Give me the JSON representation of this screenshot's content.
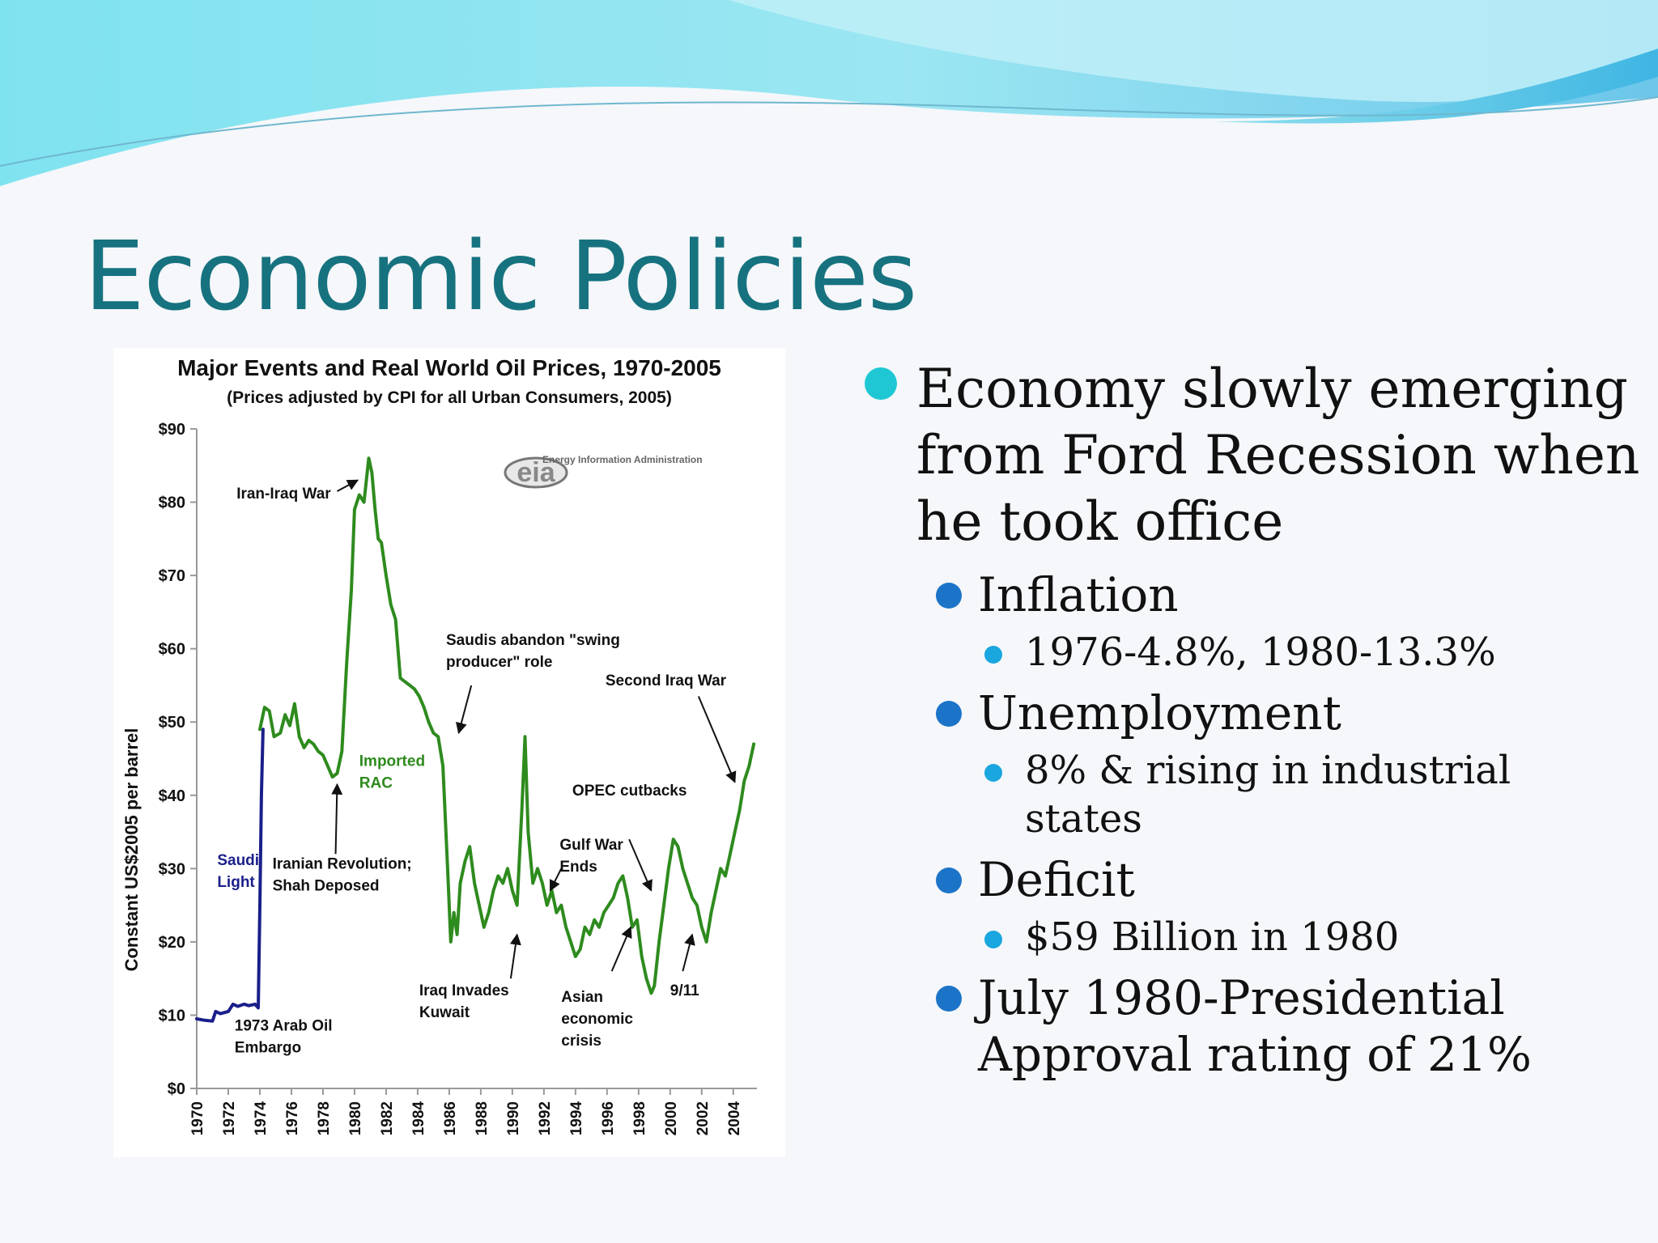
{
  "slide": {
    "title": "Economic Policies",
    "colors": {
      "title": "#17727f",
      "bullet1": "#1fc7d4",
      "bullet2": "#1c74c8",
      "bullet3": "#1aa6de"
    }
  },
  "bullets": {
    "main": {
      "lines": [
        "Economy slowly emerging",
        "from Ford Recession when",
        "he took office"
      ]
    },
    "inflation": {
      "label": "Inflation",
      "detail": "1976-4.8%, 1980-13.3%"
    },
    "unemployment": {
      "label": "Unemployment",
      "detail_lines": [
        "8% & rising in industrial",
        "states"
      ]
    },
    "deficit": {
      "label": "Deficit",
      "detail": "$59 Billion in 1980"
    },
    "approval": {
      "lines": [
        "July 1980-Presidential",
        "Approval rating of 21%"
      ]
    }
  },
  "chart_data": {
    "type": "line",
    "title": "Major Events and Real World Oil Prices, 1970-2005",
    "subtitle": "(Prices adjusted by CPI for all Urban Consumers, 2005)",
    "ylabel": "Constant US$2005 per barrel",
    "xlabel": "",
    "ylim": [
      0,
      90
    ],
    "xlim": [
      1970,
      2005.5
    ],
    "y_ticks": [
      0,
      10,
      20,
      30,
      40,
      50,
      60,
      70,
      80,
      90
    ],
    "y_tick_labels": [
      "$0",
      "$10",
      "$20",
      "$30",
      "$40",
      "$50",
      "$60",
      "$70",
      "$80",
      "$90"
    ],
    "x_ticks": [
      1970,
      1972,
      1974,
      1976,
      1978,
      1980,
      1982,
      1984,
      1986,
      1988,
      1990,
      1992,
      1994,
      1996,
      1998,
      2000,
      2002,
      2004
    ],
    "x_tick_labels": [
      "1970",
      "1972",
      "1974",
      "1976",
      "1978",
      "1980",
      "1982",
      "1984",
      "1986",
      "1988",
      "1990",
      "1992",
      "1994",
      "1996",
      "1998",
      "2000",
      "2002",
      "2004"
    ],
    "grid": false,
    "logo": {
      "agency": "Energy Information Administration",
      "mark": "eia"
    },
    "series": [
      {
        "name": "Saudi Light",
        "color": "#1a1f8a",
        "x": [
          1970.0,
          1970.5,
          1971.0,
          1971.2,
          1971.5,
          1972.0,
          1972.3,
          1972.6,
          1973.0,
          1973.3,
          1973.7,
          1973.9,
          1974.0,
          1974.1,
          1974.2
        ],
        "y": [
          9.5,
          9.3,
          9.2,
          10.5,
          10.2,
          10.5,
          11.5,
          11.2,
          11.5,
          11.3,
          11.5,
          11.0,
          25.0,
          40.0,
          49.0
        ]
      },
      {
        "name": "Imported RAC",
        "color": "#2e8b1e",
        "x": [
          1974.0,
          1974.3,
          1974.6,
          1974.9,
          1975.3,
          1975.6,
          1975.9,
          1976.2,
          1976.5,
          1976.8,
          1977.1,
          1977.4,
          1977.7,
          1978.0,
          1978.3,
          1978.6,
          1978.9,
          1979.2,
          1979.5,
          1979.8,
          1980.0,
          1980.3,
          1980.6,
          1980.9,
          1981.1,
          1981.3,
          1981.5,
          1981.7,
          1982.0,
          1982.3,
          1982.6,
          1982.9,
          1983.2,
          1983.5,
          1983.8,
          1984.1,
          1984.4,
          1984.7,
          1985.0,
          1985.3,
          1985.6,
          1985.9,
          1986.1,
          1986.3,
          1986.5,
          1986.7,
          1987.0,
          1987.3,
          1987.6,
          1987.9,
          1988.2,
          1988.5,
          1988.8,
          1989.1,
          1989.4,
          1989.7,
          1990.0,
          1990.3,
          1990.6,
          1990.8,
          1991.0,
          1991.3,
          1991.6,
          1991.9,
          1992.2,
          1992.5,
          1992.8,
          1993.1,
          1993.4,
          1993.7,
          1994.0,
          1994.3,
          1994.6,
          1994.9,
          1995.2,
          1995.5,
          1995.8,
          1996.1,
          1996.4,
          1996.7,
          1997.0,
          1997.3,
          1997.6,
          1997.9,
          1998.2,
          1998.5,
          1998.8,
          1999.0,
          1999.3,
          1999.6,
          1999.9,
          2000.2,
          2000.5,
          2000.8,
          2001.1,
          2001.4,
          2001.7,
          2002.0,
          2002.3,
          2002.6,
          2002.9,
          2003.2,
          2003.5,
          2003.8,
          2004.1,
          2004.4,
          2004.7,
          2005.0,
          2005.3
        ],
        "y": [
          49.0,
          52.0,
          51.5,
          48.0,
          48.5,
          51.0,
          49.5,
          52.5,
          48.0,
          46.5,
          47.5,
          47.0,
          46.0,
          45.5,
          44.0,
          42.5,
          43.0,
          46.0,
          58.0,
          68.0,
          79.0,
          81.0,
          80.0,
          86.0,
          84.0,
          79.0,
          75.0,
          74.5,
          70.0,
          66.0,
          64.0,
          56.0,
          55.5,
          55.0,
          54.5,
          53.5,
          52.0,
          50.0,
          48.5,
          48.0,
          44.0,
          30.0,
          20.0,
          24.0,
          21.0,
          28.0,
          31.0,
          33.0,
          28.0,
          25.0,
          22.0,
          24.0,
          27.0,
          29.0,
          28.0,
          30.0,
          27.0,
          25.0,
          38.0,
          48.0,
          35.0,
          28.0,
          30.0,
          28.0,
          25.0,
          27.0,
          24.0,
          25.0,
          22.0,
          20.0,
          18.0,
          19.0,
          22.0,
          21.0,
          23.0,
          22.0,
          24.0,
          25.0,
          26.0,
          28.0,
          29.0,
          26.0,
          22.0,
          23.0,
          18.0,
          15.0,
          13.0,
          14.0,
          20.0,
          25.0,
          30.0,
          34.0,
          33.0,
          30.0,
          28.0,
          26.0,
          25.0,
          22.0,
          20.0,
          24.0,
          27.0,
          30.0,
          29.0,
          32.0,
          35.0,
          38.0,
          42.0,
          44.0,
          47.0
        ]
      }
    ],
    "series_labels": [
      {
        "lines": [
          "Saudi",
          "Light"
        ],
        "x": 1971.3,
        "y": 30.5,
        "color": "#1a1f8a"
      },
      {
        "lines": [
          "Imported",
          "RAC"
        ],
        "x": 1980.3,
        "y": 44.0,
        "color": "#2e8b1e"
      }
    ],
    "annotations": [
      {
        "lines": [
          "Iran-Iraq War"
        ],
        "anchor": "end",
        "x": 1978.5,
        "y": 80.5,
        "arrow_from": [
          1978.9,
          81.5
        ],
        "arrow_to": [
          1980.2,
          83.0
        ]
      },
      {
        "lines": [
          "Saudis abandon \"swing",
          "producer\" role"
        ],
        "anchor": "start",
        "x": 1985.8,
        "y": 60.5,
        "arrow_from": [
          1987.4,
          55.0
        ],
        "arrow_to": [
          1986.6,
          48.5
        ]
      },
      {
        "lines": [
          "Second Iraq War"
        ],
        "anchor": "start",
        "x": 1995.9,
        "y": 55.0,
        "arrow_from": [
          2001.8,
          53.5
        ],
        "arrow_to": [
          2004.1,
          41.8
        ]
      },
      {
        "lines": [
          "Imported",
          "RAC"
        ],
        "anchor": "start",
        "x": 1980.3,
        "y": 44.0
      },
      {
        "lines": [
          "OPEC cutbacks"
        ],
        "anchor": "start",
        "x": 1993.8,
        "y": 40.0,
        "arrow_from": [
          1997.4,
          34.0
        ],
        "arrow_to": [
          1998.8,
          27.0
        ]
      },
      {
        "lines": [
          "Gulf War",
          "Ends"
        ],
        "anchor": "start",
        "x": 1993.0,
        "y": 32.6,
        "arrow_from": [
          1993.1,
          30.0
        ],
        "arrow_to": [
          1992.4,
          27.0
        ]
      },
      {
        "lines": [
          "Iranian Revolution;",
          "Shah Deposed"
        ],
        "anchor": "start",
        "x": 1974.8,
        "y": 30.0,
        "arrow_from": [
          1978.8,
          32.0
        ],
        "arrow_to": [
          1978.9,
          41.5
        ]
      },
      {
        "lines": [
          "Saudi",
          "Light"
        ],
        "anchor": "start",
        "x": 1971.3,
        "y": 30.5
      },
      {
        "lines": [
          "Iraq Invades",
          "Kuwait"
        ],
        "anchor": "start",
        "x": 1984.1,
        "y": 12.7,
        "arrow_from": [
          1989.9,
          15.0
        ],
        "arrow_to": [
          1990.3,
          21.0
        ]
      },
      {
        "lines": [
          "Asian",
          "economic",
          "crisis"
        ],
        "anchor": "start",
        "x": 1993.1,
        "y": 11.8,
        "arrow_from": [
          1996.3,
          16.0
        ],
        "arrow_to": [
          1997.5,
          22.0
        ]
      },
      {
        "lines": [
          "9/11"
        ],
        "anchor": "start",
        "x": 2000.0,
        "y": 12.7,
        "arrow_from": [
          2000.8,
          16.0
        ],
        "arrow_to": [
          2001.4,
          21.0
        ]
      },
      {
        "lines": [
          "1973 Arab Oil",
          "Embargo"
        ],
        "anchor": "start",
        "x": 1972.4,
        "y": 7.9
      }
    ]
  }
}
